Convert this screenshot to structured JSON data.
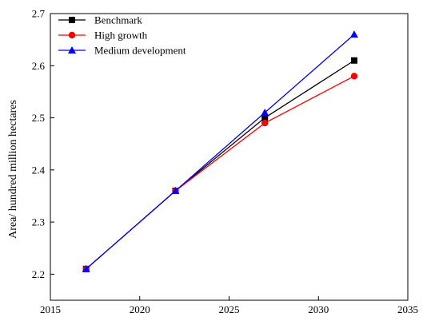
{
  "chart_data": {
    "type": "line",
    "title": "",
    "xlabel": "",
    "ylabel": "Area/ hundred million hectares",
    "xlim": [
      2015,
      2035
    ],
    "ylim": [
      2.15,
      2.7
    ],
    "xticks": [
      2015,
      2020,
      2025,
      2030,
      2035
    ],
    "yticks": [
      2.2,
      2.3,
      2.4,
      2.5,
      2.6,
      2.7
    ],
    "x": [
      2017,
      2022,
      2027,
      2032
    ],
    "grid": false,
    "legend_position": "top-left",
    "series": [
      {
        "name": "Benchmark",
        "values": [
          2.21,
          2.36,
          2.5,
          2.61
        ],
        "color": "#000000",
        "marker": "square"
      },
      {
        "name": "High growth",
        "values": [
          2.21,
          2.36,
          2.49,
          2.58
        ],
        "color": "#ff0000",
        "marker": "circle"
      },
      {
        "name": "Medium development",
        "values": [
          2.21,
          2.36,
          2.51,
          2.66
        ],
        "color": "#0000ff",
        "marker": "triangle"
      }
    ]
  }
}
